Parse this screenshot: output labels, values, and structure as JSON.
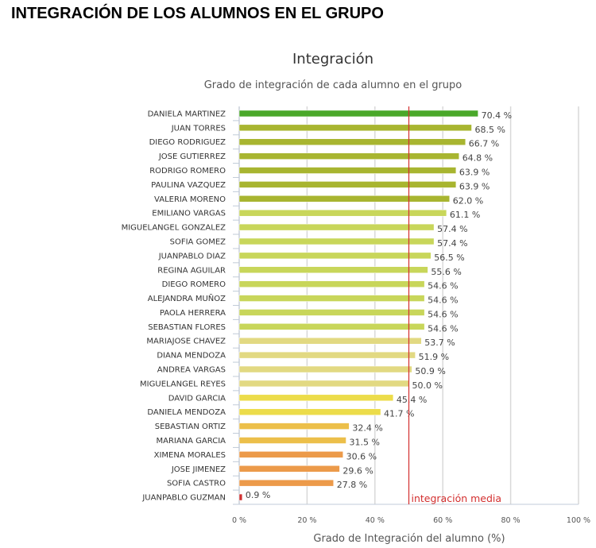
{
  "page_title": "INTEGRACIÓN DE LOS ALUMNOS EN EL GRUPO",
  "chart_data": {
    "type": "bar",
    "orientation": "horizontal",
    "title": "Integración",
    "subtitle": "Grado de integración de cada alumno en el grupo",
    "xlabel": "Grado de Integración del alumno (%)",
    "ylabel": "",
    "xlim": [
      0,
      100
    ],
    "x_ticks": [
      "0 %",
      "20 %",
      "40 %",
      "60 %",
      "80 %",
      "100 %"
    ],
    "x_tick_values": [
      0,
      20,
      40,
      60,
      80,
      100
    ],
    "grid": true,
    "value_suffix": " %",
    "reference_line": {
      "value": 50,
      "label": "integración media",
      "color": "#d32f2f"
    },
    "categories": [
      "DANIELA MARTINEZ",
      "JUAN TORRES",
      "DIEGO RODRIGUEZ",
      "JOSE GUTIERREZ",
      "RODRIGO ROMERO",
      "PAULINA VAZQUEZ",
      "VALERIA MORENO",
      "EMILIANO VARGAS",
      "MIGUELANGEL GONZALEZ",
      "SOFIA GOMEZ",
      "JUANPABLO DIAZ",
      "REGINA AGUILAR",
      "DIEGO ROMERO",
      "ALEJANDRA MUÑOZ",
      "PAOLA HERRERA",
      "SEBASTIAN FLORES",
      "MARIAJOSE CHAVEZ",
      "DIANA MENDOZA",
      "ANDREA VARGAS",
      "MIGUELANGEL REYES",
      "DAVID GARCIA",
      "DANIELA MENDOZA",
      "SEBASTIAN ORTIZ",
      "MARIANA GARCIA",
      "XIMENA MORALES",
      "JOSE JIMENEZ",
      "SOFIA CASTRO",
      "JUANPABLO GUZMAN"
    ],
    "values": [
      70.4,
      68.5,
      66.7,
      64.8,
      63.9,
      63.9,
      62.0,
      61.1,
      57.4,
      57.4,
      56.5,
      55.6,
      54.6,
      54.6,
      54.6,
      54.6,
      53.7,
      51.9,
      50.9,
      50.0,
      45.4,
      41.7,
      32.4,
      31.5,
      30.6,
      29.6,
      27.8,
      0.9
    ],
    "value_labels": [
      "70.4 %",
      "68.5 %",
      "66.7 %",
      "64.8 %",
      "63.9 %",
      "63.9 %",
      "62.0 %",
      "61.1 %",
      "57.4 %",
      "57.4 %",
      "56.5 %",
      "55.6 %",
      "54.6 %",
      "54.6 %",
      "54.6 %",
      "54.6 %",
      "53.7 %",
      "51.9 %",
      "50.9 %",
      "50.0 %",
      "45.4 %",
      "41.7 %",
      "32.4 %",
      "31.5 %",
      "30.6 %",
      "29.6 %",
      "27.8 %",
      "0.9 %"
    ],
    "colors": [
      "#4aa82a",
      "#a8b530",
      "#a8b530",
      "#a8b530",
      "#a8b530",
      "#a8b530",
      "#a8b530",
      "#c8d65a",
      "#c8d65a",
      "#c8d65a",
      "#c8d65a",
      "#c8d65a",
      "#c8d65a",
      "#c8d65a",
      "#c8d65a",
      "#c8d65a",
      "#e2d982",
      "#e2d982",
      "#e2d982",
      "#e2d982",
      "#ecdc4a",
      "#ecdc4a",
      "#ecbf4a",
      "#ecbf4a",
      "#ec9a4a",
      "#ec9a4a",
      "#ec9a4a",
      "#d03030"
    ]
  }
}
